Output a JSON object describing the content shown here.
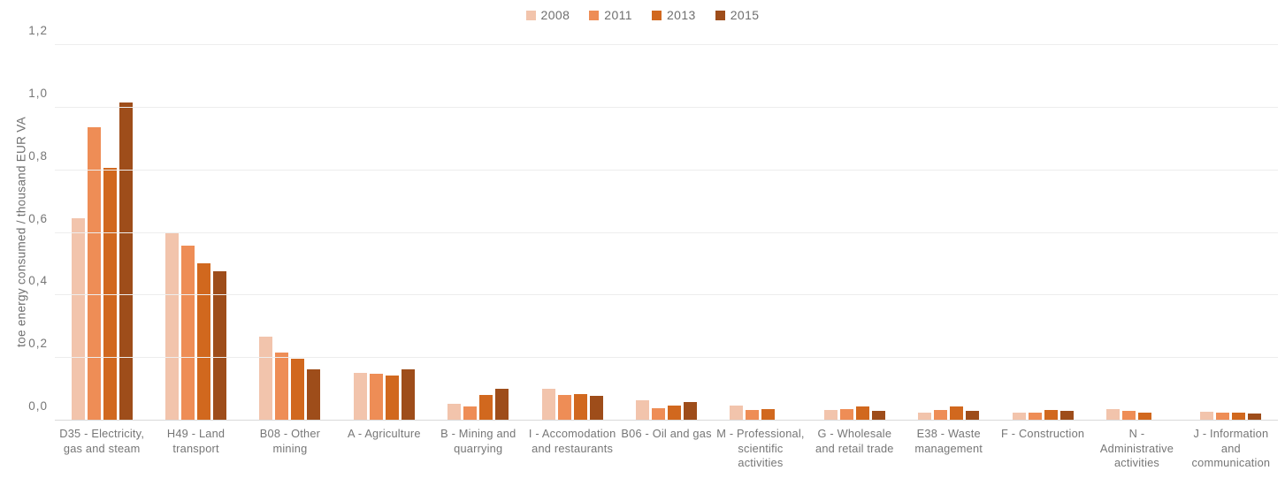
{
  "chart_data": {
    "type": "bar",
    "title": "",
    "ylabel": "toe energy consumed / thousand EUR VA",
    "xlabel": "",
    "ylim": [
      0,
      1.2
    ],
    "ytick_labels": [
      "0,0",
      "0,2",
      "0,4",
      "0,6",
      "0,8",
      "1,0",
      "1,2"
    ],
    "ytick_values": [
      0,
      0.2,
      0.4,
      0.6,
      0.8,
      1.0,
      1.2
    ],
    "grid": true,
    "legend_position": "top-center",
    "categories": [
      "D35 - Electricity, gas and steam",
      "H49 - Land transport",
      "B08 - Other mining",
      "A - Agriculture",
      "B - Mining and quarrying",
      "I - Accomodation and restaurants",
      "B06 - Oil and gas",
      "M - Professional, scientific activities",
      "G - Wholesale and retail trade",
      "E38 - Waste management",
      "F - Construction",
      "N - Administrative activities",
      "J - Information and communication"
    ],
    "series": [
      {
        "name": "2008",
        "color": "#f2c4ac",
        "values": [
          0.645,
          0.595,
          0.265,
          0.15,
          0.052,
          0.098,
          0.063,
          0.045,
          0.032,
          0.024,
          0.022,
          0.034,
          0.026
        ]
      },
      {
        "name": "2011",
        "color": "#ee8d56",
        "values": [
          0.935,
          0.555,
          0.215,
          0.146,
          0.041,
          0.078,
          0.036,
          0.032,
          0.033,
          0.031,
          0.024,
          0.029,
          0.022
        ]
      },
      {
        "name": "2013",
        "color": "#d1681e",
        "values": [
          0.805,
          0.5,
          0.196,
          0.141,
          0.08,
          0.083,
          0.045,
          0.033,
          0.041,
          0.042,
          0.031,
          0.024,
          0.022
        ]
      },
      {
        "name": "2015",
        "color": "#9e4d1a",
        "values": [
          1.015,
          0.475,
          0.161,
          0.162,
          0.099,
          0.077,
          0.056,
          0.0,
          0.028,
          0.029,
          0.028,
          0.0,
          0.019
        ]
      }
    ]
  }
}
